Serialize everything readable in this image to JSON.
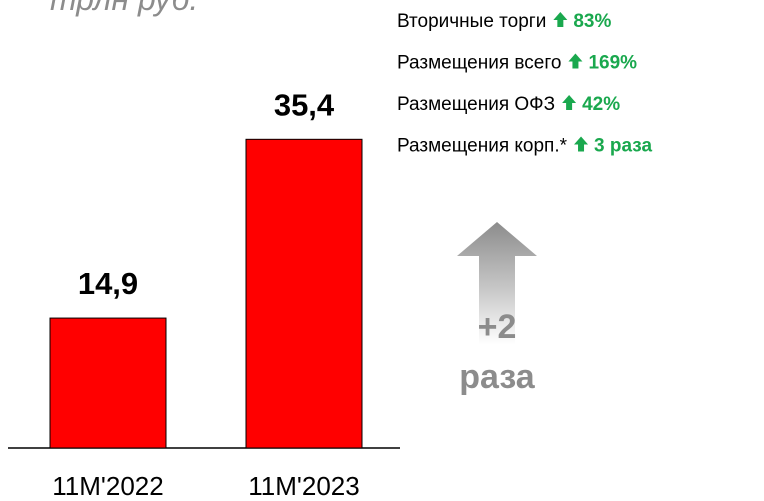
{
  "chart_data": {
    "type": "bar",
    "title": "трлн руб.",
    "categories": [
      "11M'2022",
      "11M'2023"
    ],
    "values": [
      14.9,
      35.4
    ],
    "value_labels": [
      "14,9",
      "35,4"
    ],
    "color": "#ff0000",
    "ylim": [
      0,
      50
    ],
    "annotations": [
      {
        "label": "Вторичные торги",
        "change": "83%"
      },
      {
        "label": "Размещения всего",
        "change": "169%"
      },
      {
        "label": "Размещения ОФЗ",
        "change": "42%"
      },
      {
        "label": "Размещения корп.*",
        "change": "3 раза"
      }
    ],
    "growth": {
      "value": "+2",
      "unit": "раза"
    }
  }
}
